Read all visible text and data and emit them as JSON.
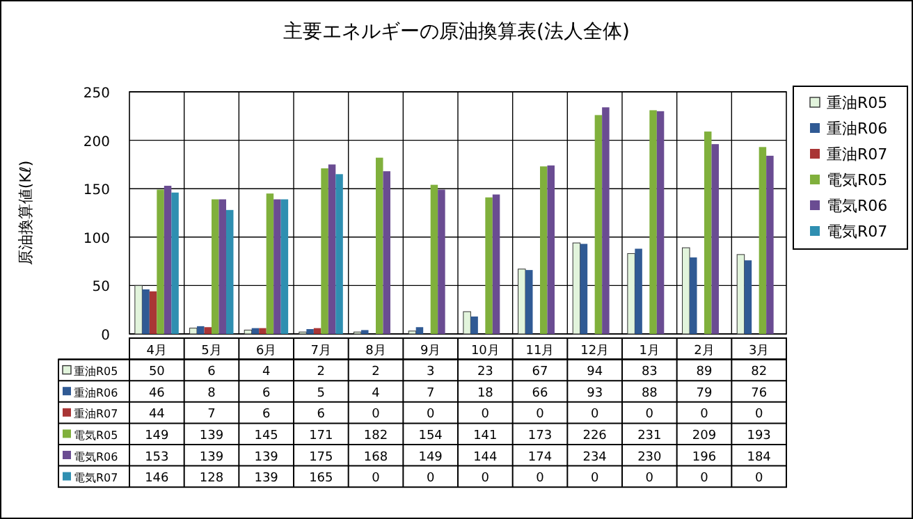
{
  "chart_data": {
    "type": "bar",
    "title": "主要エネルギーの原油換算表(法人全体)",
    "ylabel": "原油換算値(Kℓ)",
    "categories": [
      "4月",
      "5月",
      "6月",
      "7月",
      "8月",
      "9月",
      "10月",
      "11月",
      "12月",
      "1月",
      "2月",
      "3月"
    ],
    "series": [
      {
        "name": "重油R05",
        "color": "#e2f4dc",
        "values": [
          50,
          6,
          4,
          2,
          2,
          3,
          23,
          67,
          94,
          83,
          89,
          82
        ]
      },
      {
        "name": "重油R06",
        "color": "#305a94",
        "values": [
          46,
          8,
          6,
          5,
          4,
          7,
          18,
          66,
          93,
          88,
          79,
          76
        ]
      },
      {
        "name": "重油R07",
        "color": "#a93535",
        "values": [
          44,
          7,
          6,
          6,
          0,
          0,
          0,
          0,
          0,
          0,
          0,
          0
        ]
      },
      {
        "name": "電気R05",
        "color": "#80b03c",
        "values": [
          149,
          139,
          145,
          171,
          182,
          154,
          141,
          173,
          226,
          231,
          209,
          193
        ]
      },
      {
        "name": "電気R06",
        "color": "#6a4c92",
        "values": [
          153,
          139,
          139,
          175,
          168,
          149,
          144,
          174,
          234,
          230,
          196,
          184
        ]
      },
      {
        "name": "電気R07",
        "color": "#2f8fb1",
        "values": [
          146,
          128,
          139,
          165,
          0,
          0,
          0,
          0,
          0,
          0,
          0,
          0
        ]
      }
    ],
    "ylim": [
      0,
      250
    ],
    "yticks": [
      0,
      50,
      100,
      150,
      200,
      250
    ],
    "grid": true,
    "legend": "right",
    "data_labels": true
  }
}
